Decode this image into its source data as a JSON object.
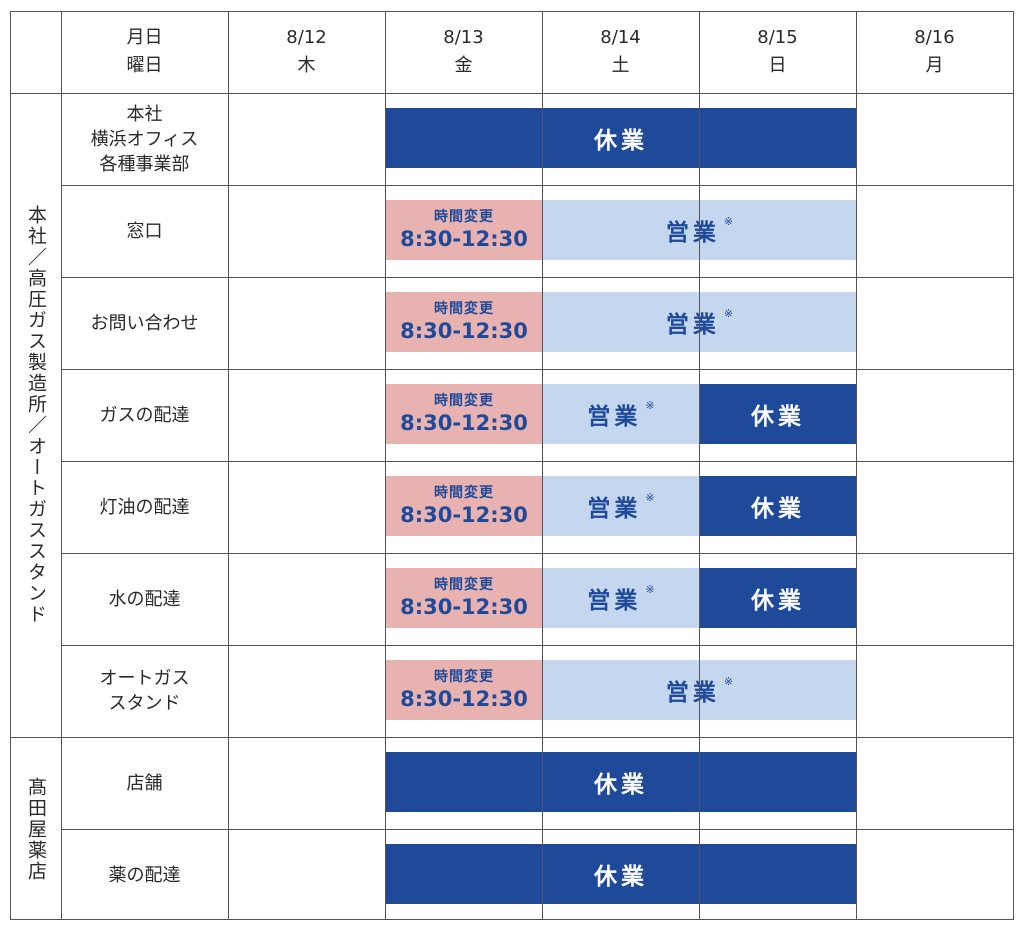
{
  "header": {
    "corner": "",
    "row_header": "月日\n曜日",
    "days": [
      {
        "date": "8/12",
        "dow": "木"
      },
      {
        "date": "8/13",
        "dow": "金"
      },
      {
        "date": "8/14",
        "dow": "土"
      },
      {
        "date": "8/15",
        "dow": "日"
      },
      {
        "date": "8/16",
        "dow": "月"
      }
    ]
  },
  "status_labels": {
    "closed": "休業",
    "open": "営業",
    "open_note": "※",
    "changed": "時間変更",
    "changed_hours": "8:30-12:30"
  },
  "groups": [
    {
      "name": "本社／高圧ガス製造所／オートガススタンド",
      "rows": [
        {
          "label": "本社\n横浜オフィス\n各種事業部",
          "spans": [
            {
              "type": "closed",
              "from": 1,
              "to": 3
            }
          ]
        },
        {
          "label": "窓口",
          "spans": [
            {
              "type": "changed",
              "from": 1,
              "to": 1
            },
            {
              "type": "open",
              "from": 2,
              "to": 3
            }
          ]
        },
        {
          "label": "お問い合わせ",
          "spans": [
            {
              "type": "changed",
              "from": 1,
              "to": 1
            },
            {
              "type": "open",
              "from": 2,
              "to": 3
            }
          ]
        },
        {
          "label": "ガスの配達",
          "spans": [
            {
              "type": "changed",
              "from": 1,
              "to": 1
            },
            {
              "type": "open",
              "from": 2,
              "to": 2
            },
            {
              "type": "closed",
              "from": 3,
              "to": 3
            }
          ]
        },
        {
          "label": "灯油の配達",
          "spans": [
            {
              "type": "changed",
              "from": 1,
              "to": 1
            },
            {
              "type": "open",
              "from": 2,
              "to": 2
            },
            {
              "type": "closed",
              "from": 3,
              "to": 3
            }
          ]
        },
        {
          "label": "水の配達",
          "spans": [
            {
              "type": "changed",
              "from": 1,
              "to": 1
            },
            {
              "type": "open",
              "from": 2,
              "to": 2
            },
            {
              "type": "closed",
              "from": 3,
              "to": 3
            }
          ]
        },
        {
          "label": "オートガス\nスタンド",
          "spans": [
            {
              "type": "changed",
              "from": 1,
              "to": 1
            },
            {
              "type": "open",
              "from": 2,
              "to": 3
            }
          ]
        }
      ]
    },
    {
      "name": "髙田屋薬店",
      "rows": [
        {
          "label": "店舗",
          "spans": [
            {
              "type": "closed",
              "from": 1,
              "to": 3
            }
          ]
        },
        {
          "label": "薬の配達",
          "spans": [
            {
              "type": "closed",
              "from": 1,
              "to": 3
            }
          ]
        }
      ]
    }
  ],
  "colors": {
    "closed": "#1e4a99",
    "open": "#c4d7ee",
    "changed": "#e8b2b1",
    "text_accent": "#1e4a99",
    "grid": "#555555"
  }
}
